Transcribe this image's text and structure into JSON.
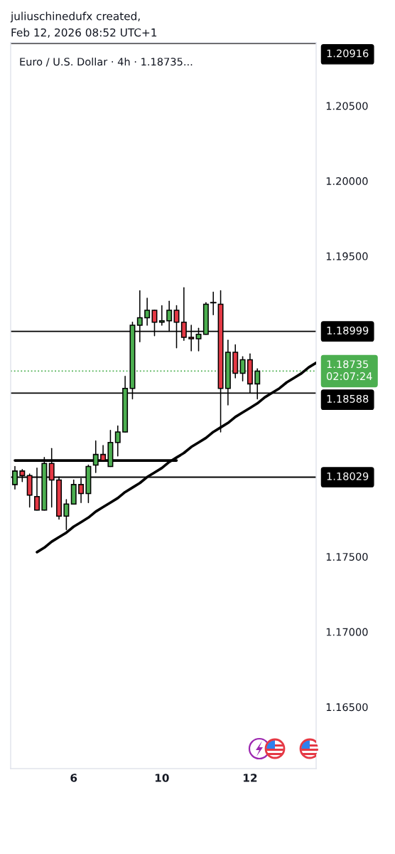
{
  "chart_data": {
    "type": "candlestick",
    "title": "Euro / U.S. Dollar · 4h · 1.18735...",
    "annotations": [
      "juliuschinedufx created,",
      "Feb 12, 2026 08:52 UTC+1"
    ],
    "categories": [
      null,
      null,
      null,
      null,
      null,
      null,
      null,
      null,
      "6",
      null,
      null,
      null,
      null,
      null,
      null,
      null,
      null,
      null,
      null,
      null,
      "10",
      null,
      null,
      null,
      null,
      null,
      null,
      null,
      null,
      null,
      null,
      null,
      "12",
      null,
      null,
      null,
      null,
      null,
      null,
      null,
      null,
      null
    ],
    "ohlc": [
      [
        1.1798,
        1.181,
        1.1795,
        1.1807
      ],
      [
        1.1807,
        1.1808,
        1.18,
        1.1804
      ],
      [
        1.1804,
        1.1805,
        1.1783,
        1.1791
      ],
      [
        1.179,
        1.1809,
        1.1781,
        1.1781
      ],
      [
        1.1781,
        1.1816,
        1.1781,
        1.1812
      ],
      [
        1.1812,
        1.1822,
        1.1783,
        1.1801
      ],
      [
        1.1801,
        1.1803,
        1.1775,
        1.1777
      ],
      [
        1.1777,
        1.1788,
        1.1768,
        1.1785
      ],
      [
        1.1785,
        1.1801,
        1.1785,
        1.1798
      ],
      [
        1.1798,
        1.1802,
        1.1786,
        1.1792
      ],
      [
        1.1792,
        1.1811,
        1.1786,
        1.181
      ],
      [
        1.1811,
        1.1827,
        1.1806,
        1.1818
      ],
      [
        1.1818,
        1.1824,
        1.1814,
        1.1814
      ],
      [
        1.181,
        1.1834,
        1.181,
        1.1826
      ],
      [
        1.1826,
        1.1837,
        1.1817,
        1.1833
      ],
      [
        1.1833,
        1.187,
        1.1833,
        1.1862
      ],
      [
        1.1862,
        1.1906,
        1.1855,
        1.1904
      ],
      [
        1.1904,
        1.1927,
        1.1893,
        1.1909
      ],
      [
        1.1909,
        1.1922,
        1.1904,
        1.1914
      ],
      [
        1.1914,
        1.1914,
        1.1897,
        1.1906
      ],
      [
        1.1906,
        1.1917,
        1.1904,
        1.1907
      ],
      [
        1.1907,
        1.192,
        1.19,
        1.1914
      ],
      [
        1.1914,
        1.1917,
        1.1889,
        1.1906
      ],
      [
        1.1906,
        1.1929,
        1.1894,
        1.1896
      ],
      [
        1.1896,
        1.1904,
        1.1887,
        1.1895
      ],
      [
        1.1895,
        1.1902,
        1.1887,
        1.1898
      ],
      [
        1.1898,
        1.1919,
        1.1898,
        1.1918
      ],
      [
        1.1919,
        1.1926,
        1.1911,
        1.1919
      ],
      [
        1.1918,
        1.1927,
        1.1833,
        1.1862
      ],
      [
        1.1862,
        1.1894,
        1.1851,
        1.1886
      ],
      [
        1.1886,
        1.1891,
        1.1869,
        1.1872
      ],
      [
        1.1872,
        1.1883,
        1.1867,
        1.1881
      ],
      [
        1.1881,
        1.1885,
        1.1859,
        1.1865
      ],
      [
        1.1865,
        1.1875,
        1.1855,
        1.18735
      ],
      null,
      null,
      null,
      null,
      null,
      null,
      null,
      null
    ],
    "colors": [
      "#4caf50",
      "#e53945",
      "#e53945",
      "#e53945",
      "#4caf50",
      "#e53945",
      "#e53945",
      "#4caf50",
      "#4caf50",
      "#e53945",
      "#4caf50",
      "#4caf50",
      "#e53945",
      "#4caf50",
      "#4caf50",
      "#4caf50",
      "#4caf50",
      "#4caf50",
      "#4caf50",
      "#e53945",
      "#4caf50",
      "#4caf50",
      "#e53945",
      "#e53945",
      "#e53945",
      "#4caf50",
      "#4caf50",
      "#000000",
      "#e53945",
      "#4caf50",
      "#e53945",
      "#4caf50",
      "#e53945",
      "#4caf50",
      null,
      null,
      null,
      null,
      null,
      null,
      null,
      null
    ],
    "series": [
      {
        "type": "line",
        "color": "#000000",
        "values": [
          null,
          null,
          null,
          1.1753,
          1.1756,
          1.176,
          1.1763,
          1.1766,
          1.177,
          1.1773,
          1.1776,
          1.178,
          1.1783,
          1.1786,
          1.1789,
          1.1793,
          1.1796,
          1.1799,
          1.1803,
          1.1806,
          1.1809,
          1.1813,
          1.1816,
          1.1819,
          1.1823,
          1.1826,
          1.1829,
          1.1833,
          1.1836,
          1.1839,
          1.1843,
          1.1846,
          1.1849,
          1.1852,
          1.1856,
          1.1859,
          1.1862,
          1.1866,
          1.1869,
          1.1872,
          1.1876,
          1.1879
        ]
      },
      {
        "type": "line",
        "color": "#000000",
        "values": [
          1.1814,
          1.1814,
          1.1814,
          1.1814,
          1.1814,
          1.1814,
          1.1814,
          1.1814,
          1.1814,
          1.1814,
          1.1814,
          1.1814,
          1.1814,
          1.1814,
          1.1814,
          1.1814,
          1.1814,
          1.1814,
          1.1814,
          1.1814,
          1.1814,
          1.1814,
          1.1814,
          null,
          null,
          null,
          null,
          null,
          null,
          null,
          null,
          null,
          null,
          null,
          null,
          null,
          null,
          null,
          null,
          null,
          null,
          null
        ]
      }
    ],
    "ref_lines": [
      {
        "axis": "y",
        "value": 1.20916,
        "label": "1.20916",
        "color": "#000000"
      },
      {
        "axis": "y",
        "value": 1.18999,
        "label": "1.18999",
        "color": "#000000"
      },
      {
        "axis": "y",
        "value": 1.18735,
        "label": "1.18735\n02:07:24",
        "color": "#4caf50",
        "line_style": "dotted"
      },
      {
        "axis": "y",
        "value": 1.18588,
        "label": "1.18588",
        "color": "#000000"
      },
      {
        "axis": "y",
        "value": 1.18029,
        "label": "1.18029",
        "color": "#000000"
      }
    ],
    "ylim": [
      1.1609,
      1.2092
    ],
    "yticks": [
      {
        "value": 1.165,
        "label": "1.16500"
      },
      {
        "value": 1.17,
        "label": "1.17000"
      },
      {
        "value": 1.175,
        "label": "1.17500"
      },
      {
        "value": 1.195,
        "label": "1.19500"
      },
      {
        "value": 1.2,
        "label": "1.20000"
      },
      {
        "value": 1.205,
        "label": "1.20500"
      }
    ]
  }
}
